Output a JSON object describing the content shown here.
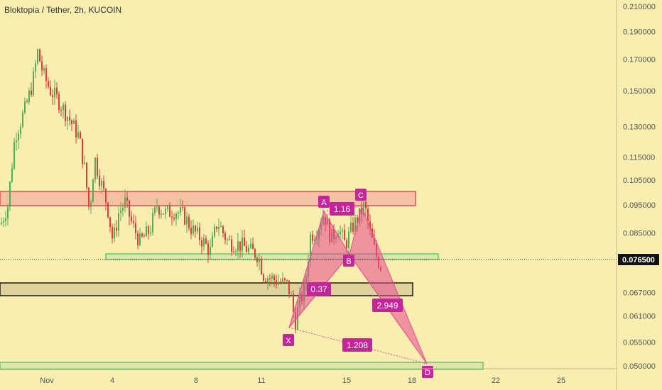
{
  "chart_title": "Bloktopia / Tether, 2h, KUCOIN",
  "chart_data": {
    "type": "candlestick",
    "title": "Bloktopia / Tether, 2h, KUCOIN",
    "y_scale": "log",
    "y_ticks": [
      "0.210000",
      "0.190000",
      "0.170000",
      "0.150000",
      "0.130000",
      "0.115000",
      "0.105000",
      "0.095000",
      "0.085000",
      "0.076500",
      "0.067000",
      "0.061000",
      "0.055000",
      "0.050000"
    ],
    "x_ticks": [
      "Nov",
      "4",
      "8",
      "11",
      "15",
      "18",
      "22",
      "25"
    ],
    "last_price": "0.076500",
    "harmonic_pattern": {
      "points": [
        "X",
        "A",
        "B",
        "C",
        "D"
      ],
      "ratios": [
        "1.16",
        "0.37",
        "2.949",
        "1.208"
      ]
    },
    "zones": [
      {
        "name": "resistance",
        "color": "#e06060"
      },
      {
        "name": "support",
        "color": "#6cc06c"
      },
      {
        "name": "demand",
        "color": "#222222"
      },
      {
        "name": "bottom-support",
        "color": "#6cc06c"
      }
    ],
    "colors": {
      "up": "#4caf50",
      "down": "#e53935",
      "pattern": "#e84a8f",
      "label": "#c2269a"
    }
  }
}
